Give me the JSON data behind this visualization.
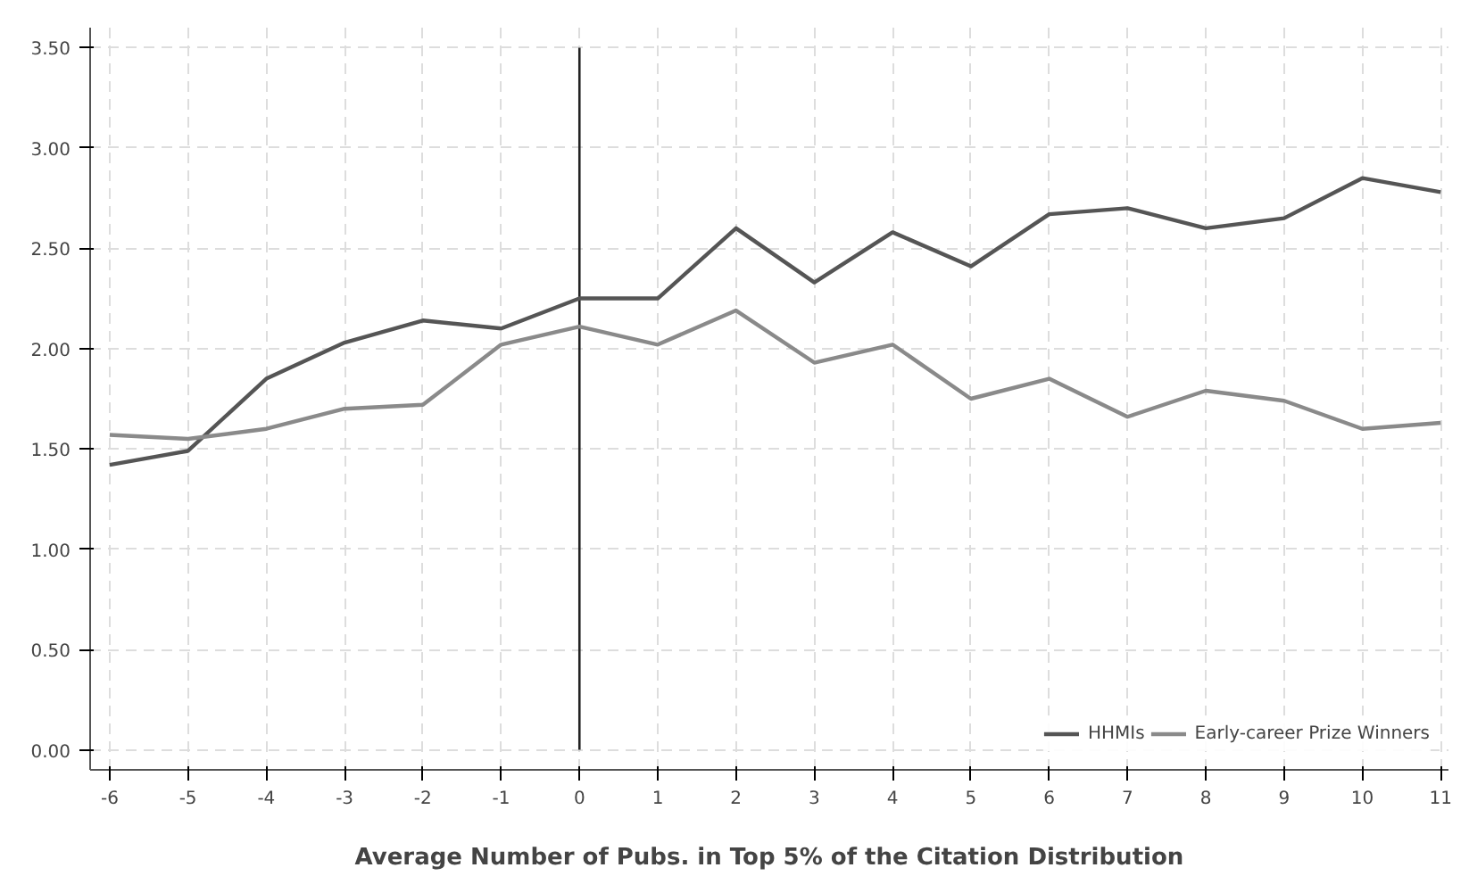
{
  "chart_data": {
    "type": "line",
    "xlabel": "Average Number of Pubs. in Top 5% of the Citation Distribution",
    "x": [
      -6,
      -5,
      -4,
      -3,
      -2,
      -1,
      0,
      1,
      2,
      3,
      4,
      5,
      6,
      7,
      8,
      9,
      10,
      11
    ],
    "series": [
      {
        "name": "HHMIs",
        "color": "#555555",
        "values": [
          1.42,
          1.49,
          1.85,
          2.03,
          2.14,
          2.1,
          2.25,
          2.25,
          2.6,
          2.33,
          2.58,
          2.41,
          2.67,
          2.7,
          2.6,
          2.65,
          2.85,
          2.78
        ]
      },
      {
        "name": "Early-career Prize Winners",
        "color": "#8a8a8a",
        "values": [
          1.57,
          1.55,
          1.6,
          1.7,
          1.72,
          2.02,
          2.11,
          2.02,
          2.19,
          1.93,
          2.02,
          1.75,
          1.85,
          1.66,
          1.79,
          1.74,
          1.6,
          1.63
        ]
      }
    ],
    "xlim": [
      -6.25,
      11.1
    ],
    "ylim": [
      -0.1,
      3.6
    ],
    "xticks": [
      -6,
      -5,
      -4,
      -3,
      -2,
      -1,
      0,
      1,
      2,
      3,
      4,
      5,
      6,
      7,
      8,
      9,
      10,
      11
    ],
    "yticks": [
      {
        "value": 0,
        "label": "0.00"
      },
      {
        "value": 0.5,
        "label": "0.50"
      },
      {
        "value": 1,
        "label": "1.00"
      },
      {
        "value": 1.5,
        "label": "1.50"
      },
      {
        "value": 2,
        "label": "2.00"
      },
      {
        "value": 2.5,
        "label": "2.50"
      },
      {
        "value": 3,
        "label": "3.00"
      },
      {
        "value": 3.5,
        "label": "3.50"
      }
    ],
    "ref_lines": [
      {
        "axis": "x",
        "value": 0,
        "color": "#222222"
      }
    ],
    "grid": true,
    "legend": "bottom right",
    "line_style": "solid"
  }
}
